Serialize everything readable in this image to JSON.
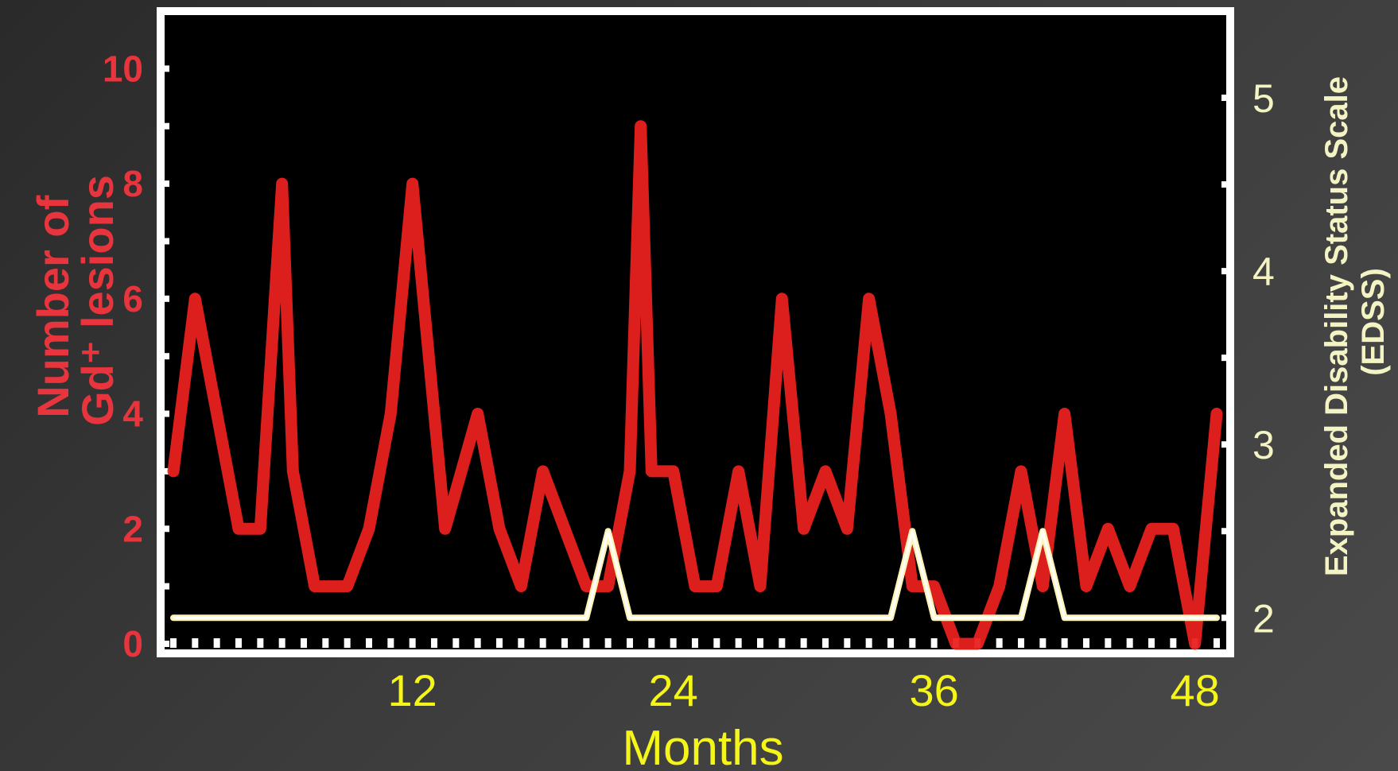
{
  "chart_data": {
    "type": "line",
    "xlabel": "Months",
    "ylabel_left": [
      "Number of",
      "Gd⁺ lesions"
    ],
    "ylabel_right": [
      "Expanded Disability Status Scale",
      "(EDSS)"
    ],
    "x_ticks": [
      12,
      24,
      36,
      48
    ],
    "y_left_ticks": [
      0,
      2,
      4,
      6,
      8,
      10
    ],
    "y_right_ticks": [
      2,
      3,
      4,
      5
    ],
    "xlim": [
      1,
      49
    ],
    "ylim_left": [
      0,
      11
    ],
    "ylim_right": [
      1.85,
      5.5
    ],
    "colors": {
      "lesions": "#e8201e",
      "edss": "#fff4b8",
      "background": "#000000",
      "frame": "#ffffff"
    },
    "series": [
      {
        "axis": "left",
        "color": "#e8201e",
        "x": [
          1,
          2,
          3,
          4,
          5,
          6,
          6.5,
          7.5,
          9,
          10,
          11,
          12,
          13.5,
          15,
          16,
          17,
          18,
          19,
          20,
          21,
          22,
          22.5,
          23,
          24,
          25,
          26,
          27,
          28,
          29,
          30,
          31,
          32,
          33,
          34,
          35,
          36,
          37,
          38,
          39,
          40,
          41,
          42,
          43,
          44,
          45,
          46,
          47,
          48,
          49
        ],
        "y": [
          3,
          6,
          4,
          2,
          2,
          8,
          3,
          1,
          1,
          2,
          4,
          8,
          2,
          4,
          2,
          1,
          3,
          2,
          1,
          1,
          3,
          9,
          3,
          3,
          1,
          1,
          3,
          1,
          6,
          2,
          3,
          2,
          6,
          4,
          1,
          1,
          0,
          0,
          1,
          3,
          1,
          4,
          1,
          2,
          1,
          2,
          2,
          0,
          4
        ]
      },
      {
        "axis": "right",
        "color": "#fff4b8",
        "x": [
          1,
          20,
          21,
          22,
          34,
          35,
          36,
          37,
          38,
          39,
          40,
          41,
          42,
          43,
          44,
          45,
          46,
          47,
          48,
          49
        ],
        "y": [
          2,
          2,
          2.5,
          2,
          2,
          2.5,
          2,
          2,
          2,
          2,
          2,
          2.5,
          2,
          2,
          2,
          2,
          2,
          2,
          2,
          2
        ]
      }
    ]
  }
}
